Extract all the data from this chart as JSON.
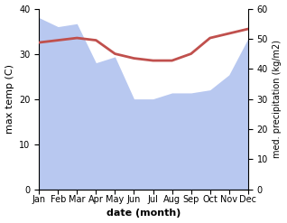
{
  "months": [
    "Jan",
    "Feb",
    "Mar",
    "Apr",
    "May",
    "Jun",
    "Jul",
    "Aug",
    "Sep",
    "Oct",
    "Nov",
    "Dec"
  ],
  "month_indices": [
    0,
    1,
    2,
    3,
    4,
    5,
    6,
    7,
    8,
    9,
    10,
    11
  ],
  "temperature": [
    32.5,
    33.0,
    33.5,
    33.0,
    30.0,
    29.0,
    28.5,
    28.5,
    30.0,
    33.5,
    34.5,
    35.5
  ],
  "precipitation": [
    57.0,
    54.0,
    55.0,
    42.0,
    44.0,
    30.0,
    30.0,
    32.0,
    32.0,
    33.0,
    38.0,
    50.0
  ],
  "temp_color": "#c0504d",
  "precip_color": "#b8c8f0",
  "temp_ylim": [
    0,
    40
  ],
  "precip_ylim": [
    0,
    60
  ],
  "temp_yticks": [
    0,
    10,
    20,
    30,
    40
  ],
  "precip_yticks": [
    0,
    10,
    20,
    30,
    40,
    50,
    60
  ],
  "xlabel": "date (month)",
  "ylabel_left": "max temp (C)",
  "ylabel_right": "med. precipitation (kg/m2)",
  "figsize": [
    3.18,
    2.47
  ],
  "dpi": 100
}
